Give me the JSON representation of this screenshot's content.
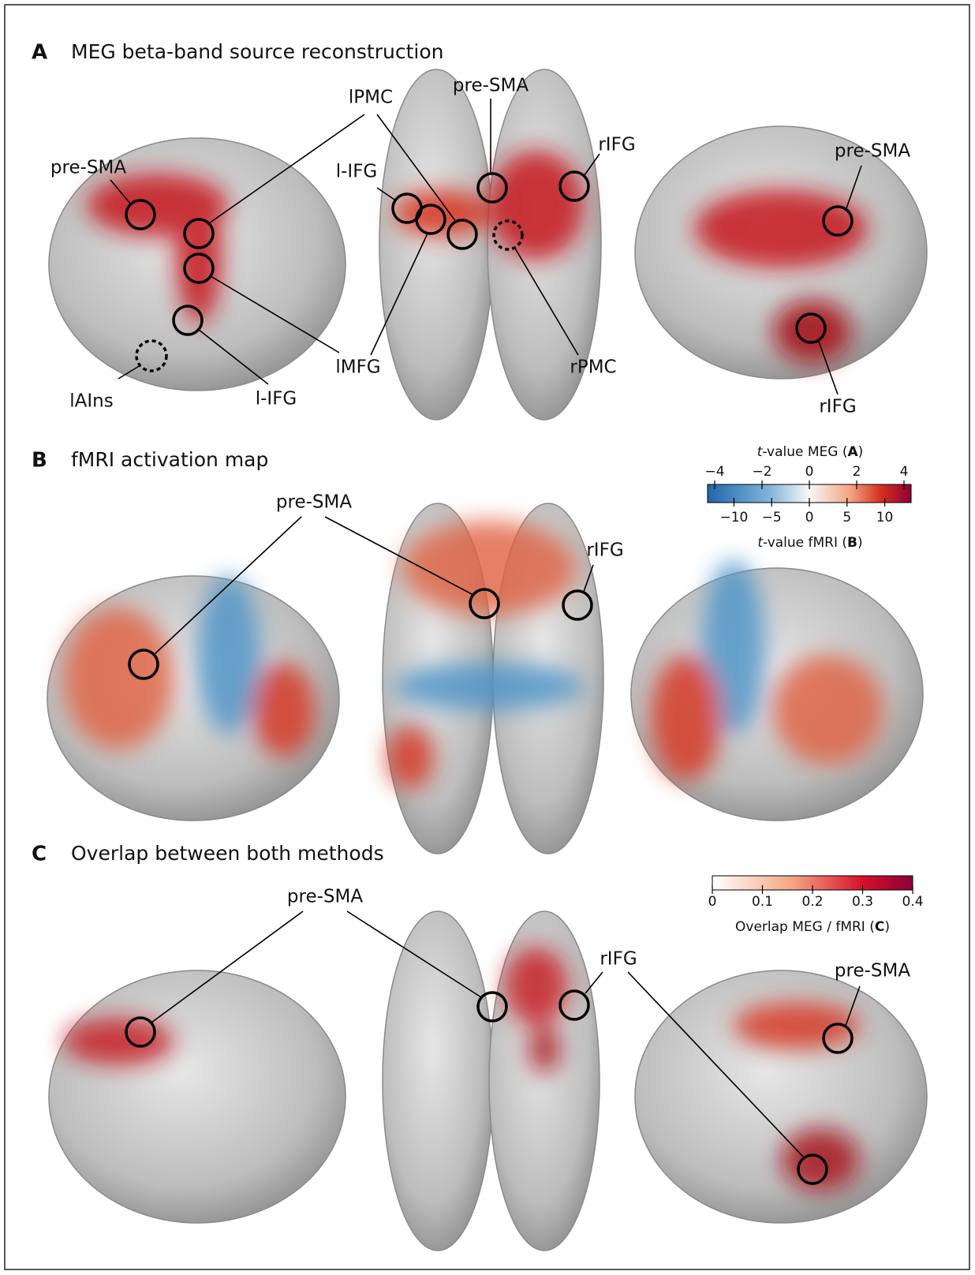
{
  "panels": [
    {
      "letter": "A",
      "title": "MEG beta-band source reconstruction",
      "labels": [
        "pre-SMA",
        "lPMC",
        "pre-SMA",
        "rIFG",
        "l-IFG",
        "pre-SMA",
        "lMFG",
        "rPMC",
        "lAIns",
        "l-IFG",
        "rIFG"
      ]
    },
    {
      "letter": "B",
      "title": "fMRI activation map",
      "labels": [
        "pre-SMA",
        "rIFG"
      ]
    },
    {
      "letter": "C",
      "title": "Overlap between both methods",
      "labels": [
        "pre-SMA",
        "rIFG",
        "pre-SMA"
      ]
    }
  ],
  "colorbars": [
    {
      "top_label": [
        "t",
        "-value MEG (",
        "A",
        ")"
      ],
      "top_range": [
        -4.3,
        4.3
      ],
      "top_ticks": [
        {
          "value": -4,
          "label": "−4"
        },
        {
          "value": -2,
          "label": "−2"
        },
        0,
        2,
        4
      ],
      "bottom_range": [
        -13.5,
        13.5
      ],
      "bottom_ticks": [
        {
          "value": -10,
          "label": "−10"
        },
        {
          "value": -5,
          "label": "−5"
        },
        0,
        5,
        10
      ],
      "bottom_label": [
        "t",
        "-value fMRI (",
        "B",
        ")"
      ]
    },
    {
      "range": [
        0,
        0.4
      ],
      "ticks": [
        0,
        0.1,
        0.2,
        0.3,
        0.4
      ],
      "label": [
        "Overlap MEG / fMRI (",
        "C",
        ")"
      ]
    }
  ]
}
